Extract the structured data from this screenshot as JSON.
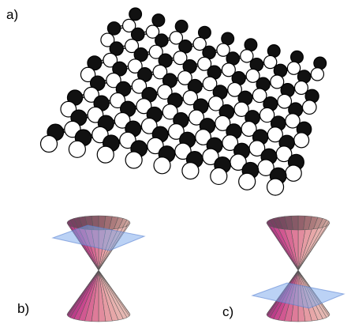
{
  "panels": {
    "a": {
      "label": "a)"
    },
    "b": {
      "label": "b)"
    },
    "c": {
      "label": "c)"
    }
  }
}
